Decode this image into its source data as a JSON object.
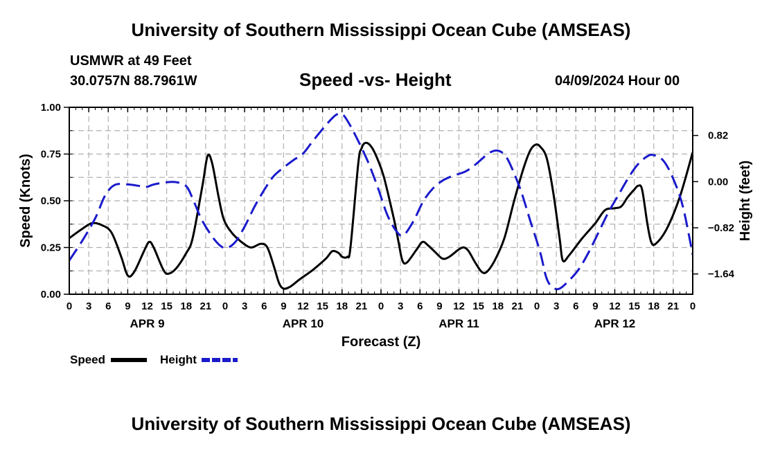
{
  "header": {
    "title": "University of Southern Mississippi Ocean Cube (AMSEAS)",
    "station": "USMWR at 49 Feet",
    "coords": "30.0757N  88.7961W",
    "chart_title": "Speed -vs- Height",
    "date": "04/09/2024 Hour 00"
  },
  "footer": {
    "title": "University of Southern Mississippi Ocean Cube (AMSEAS)"
  },
  "colors": {
    "speed": "#000000",
    "height": "#1a1acc",
    "grid": "#b0b0b0"
  },
  "chart_data": {
    "type": "line",
    "title": "Speed -vs- Height",
    "xlabel": "Forecast (Z)",
    "ylabel": "Speed (Knots)",
    "y2label": "Height (feet)",
    "xlim": [
      0,
      96
    ],
    "ylim": [
      0,
      1.0
    ],
    "y2lim": [
      -2.0,
      1.32
    ],
    "x_tick_labels": [
      "0",
      "3",
      "6",
      "9",
      "12",
      "15",
      "18",
      "21",
      "0",
      "3",
      "6",
      "9",
      "12",
      "15",
      "18",
      "21",
      "0",
      "3",
      "6",
      "9",
      "12",
      "15",
      "18",
      "21",
      "0",
      "3",
      "6",
      "9",
      "12",
      "15",
      "18",
      "21",
      "0"
    ],
    "y_ticks": [
      {
        "value": 0.0,
        "label": "0.00"
      },
      {
        "value": 0.25,
        "label": "0.25"
      },
      {
        "value": 0.5,
        "label": "0.50"
      },
      {
        "value": 0.75,
        "label": "0.75"
      },
      {
        "value": 1.0,
        "label": "1.00"
      }
    ],
    "y2_ticks": [
      {
        "value": 0.82,
        "label": "0.82"
      },
      {
        "value": 0.0,
        "label": "0.00"
      },
      {
        "value": -0.82,
        "label": "−0.82"
      },
      {
        "value": -1.64,
        "label": "−1.64"
      }
    ],
    "day_labels": [
      {
        "hour": 12,
        "label": "APR 9"
      },
      {
        "hour": 36,
        "label": "APR 10"
      },
      {
        "hour": 60,
        "label": "APR 11"
      },
      {
        "hour": 84,
        "label": "APR 12"
      }
    ],
    "legend": [
      {
        "name": "Speed",
        "style": "solid"
      },
      {
        "name": "Height",
        "style": "dashed"
      }
    ],
    "series": [
      {
        "name": "Speed",
        "axis": "left",
        "points": [
          [
            0,
            0.3
          ],
          [
            2,
            0.35
          ],
          [
            3.5,
            0.38
          ],
          [
            5,
            0.37
          ],
          [
            6.5,
            0.33
          ],
          [
            8,
            0.2
          ],
          [
            9,
            0.1
          ],
          [
            10,
            0.12
          ],
          [
            11.5,
            0.23
          ],
          [
            12.3,
            0.28
          ],
          [
            13,
            0.25
          ],
          [
            14.5,
            0.13
          ],
          [
            15.3,
            0.11
          ],
          [
            16.5,
            0.14
          ],
          [
            18,
            0.22
          ],
          [
            19,
            0.3
          ],
          [
            20.5,
            0.58
          ],
          [
            21.3,
            0.74
          ],
          [
            22,
            0.7
          ],
          [
            23,
            0.52
          ],
          [
            23.8,
            0.4
          ],
          [
            25,
            0.33
          ],
          [
            26.5,
            0.28
          ],
          [
            28,
            0.25
          ],
          [
            29.5,
            0.27
          ],
          [
            30.5,
            0.25
          ],
          [
            31.5,
            0.15
          ],
          [
            32.3,
            0.06
          ],
          [
            33,
            0.03
          ],
          [
            34,
            0.04
          ],
          [
            35.5,
            0.08
          ],
          [
            37.5,
            0.13
          ],
          [
            39.5,
            0.19
          ],
          [
            40.5,
            0.23
          ],
          [
            41.5,
            0.22
          ],
          [
            42,
            0.2
          ],
          [
            42.8,
            0.2
          ],
          [
            43.3,
            0.25
          ],
          [
            44.5,
            0.7
          ],
          [
            45,
            0.78
          ],
          [
            45.6,
            0.81
          ],
          [
            46.5,
            0.79
          ],
          [
            47.5,
            0.72
          ],
          [
            48.5,
            0.62
          ],
          [
            50,
            0.4
          ],
          [
            50.7,
            0.28
          ],
          [
            51.3,
            0.18
          ],
          [
            52,
            0.17
          ],
          [
            53.5,
            0.24
          ],
          [
            54.4,
            0.28
          ],
          [
            55.3,
            0.26
          ],
          [
            56.5,
            0.22
          ],
          [
            57.5,
            0.19
          ],
          [
            58.5,
            0.2
          ],
          [
            60,
            0.24
          ],
          [
            60.8,
            0.25
          ],
          [
            61.5,
            0.23
          ],
          [
            62.5,
            0.17
          ],
          [
            63.5,
            0.12
          ],
          [
            64.3,
            0.12
          ],
          [
            65.5,
            0.18
          ],
          [
            67,
            0.3
          ],
          [
            68.5,
            0.5
          ],
          [
            70,
            0.68
          ],
          [
            71,
            0.77
          ],
          [
            71.8,
            0.8
          ],
          [
            72.5,
            0.79
          ],
          [
            73.5,
            0.73
          ],
          [
            74.5,
            0.55
          ],
          [
            75.5,
            0.3
          ],
          [
            76,
            0.18
          ],
          [
            77,
            0.21
          ],
          [
            79,
            0.3
          ],
          [
            81,
            0.38
          ],
          [
            82.5,
            0.45
          ],
          [
            84,
            0.46
          ],
          [
            85,
            0.47
          ],
          [
            86,
            0.52
          ],
          [
            87,
            0.56
          ],
          [
            87.6,
            0.58
          ],
          [
            88.2,
            0.56
          ],
          [
            89,
            0.38
          ],
          [
            89.6,
            0.28
          ],
          [
            90.3,
            0.27
          ],
          [
            92,
            0.35
          ],
          [
            94,
            0.52
          ],
          [
            96,
            0.76
          ]
        ]
      },
      {
        "name": "Height",
        "axis": "right",
        "points": [
          [
            0,
            -1.4
          ],
          [
            2,
            -1.05
          ],
          [
            4,
            -0.65
          ],
          [
            5.5,
            -0.25
          ],
          [
            7,
            -0.06
          ],
          [
            9,
            -0.05
          ],
          [
            11,
            -0.08
          ],
          [
            12,
            -0.09
          ],
          [
            13,
            -0.05
          ],
          [
            15,
            -0.01
          ],
          [
            16.5,
            -0.01
          ],
          [
            18,
            -0.08
          ],
          [
            19,
            -0.3
          ],
          [
            20.5,
            -0.7
          ],
          [
            22.5,
            -1.05
          ],
          [
            24,
            -1.18
          ],
          [
            25.5,
            -1.08
          ],
          [
            27,
            -0.8
          ],
          [
            28.5,
            -0.45
          ],
          [
            30,
            -0.15
          ],
          [
            31.5,
            0.1
          ],
          [
            33,
            0.25
          ],
          [
            34.5,
            0.38
          ],
          [
            36,
            0.5
          ],
          [
            37.5,
            0.72
          ],
          [
            39.5,
            1.0
          ],
          [
            41,
            1.18
          ],
          [
            42,
            1.2
          ],
          [
            43,
            1.05
          ],
          [
            44.5,
            0.72
          ],
          [
            46,
            0.35
          ],
          [
            47.5,
            -0.1
          ],
          [
            49,
            -0.6
          ],
          [
            50.5,
            -0.9
          ],
          [
            51.5,
            -0.95
          ],
          [
            53,
            -0.7
          ],
          [
            54.5,
            -0.35
          ],
          [
            56,
            -0.12
          ],
          [
            57.5,
            0.02
          ],
          [
            59,
            0.1
          ],
          [
            61,
            0.18
          ],
          [
            62.5,
            0.3
          ],
          [
            64,
            0.45
          ],
          [
            65,
            0.53
          ],
          [
            66,
            0.55
          ],
          [
            67,
            0.48
          ],
          [
            68,
            0.28
          ],
          [
            69.5,
            -0.15
          ],
          [
            71,
            -0.7
          ],
          [
            72.5,
            -1.25
          ],
          [
            73.5,
            -1.72
          ],
          [
            74.5,
            -1.88
          ],
          [
            75.5,
            -1.9
          ],
          [
            77,
            -1.75
          ],
          [
            78.5,
            -1.55
          ],
          [
            80,
            -1.25
          ],
          [
            81.5,
            -0.9
          ],
          [
            83,
            -0.55
          ],
          [
            84.5,
            -0.25
          ],
          [
            86,
            0.05
          ],
          [
            87.5,
            0.3
          ],
          [
            89,
            0.45
          ],
          [
            90,
            0.47
          ],
          [
            91.5,
            0.37
          ],
          [
            93,
            0.05
          ],
          [
            94.5,
            -0.45
          ],
          [
            96,
            -1.3
          ]
        ]
      }
    ]
  }
}
